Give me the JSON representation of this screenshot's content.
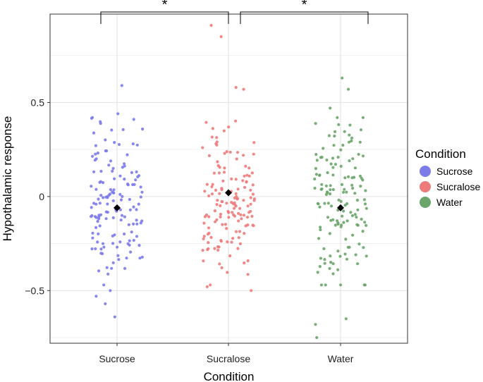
{
  "chart_data": {
    "type": "scatter",
    "subtype": "jittered-strip-with-mean",
    "title": "",
    "xlabel": "Condition",
    "ylabel": "Hypothalamic response",
    "ylim": [
      -0.78,
      0.97
    ],
    "yticks": [
      -0.5,
      0,
      0.5
    ],
    "ytick_labels": [
      "−0.5",
      "0",
      "0.5"
    ],
    "categories": [
      "Sucrose",
      "Sucralose",
      "Water"
    ],
    "grid": true,
    "legend": {
      "title": "Condition",
      "position": "right",
      "entries": [
        {
          "label": "Sucrose",
          "color": "#7b7bea"
        },
        {
          "label": "Sucralose",
          "color": "#ee7b7b"
        },
        {
          "label": "Water",
          "color": "#6aa56a"
        }
      ]
    },
    "series": [
      {
        "name": "Sucrose",
        "color": "#7b7bea",
        "mean": -0.06,
        "n": 150,
        "center": -0.05,
        "sd": 0.2,
        "extremes": [
          0.59,
          0.44,
          0.41,
          -0.5,
          -0.53,
          -0.57,
          -0.64
        ]
      },
      {
        "name": "Sucralose",
        "color": "#ee7b7b",
        "mean": 0.02,
        "n": 150,
        "center": 0.0,
        "sd": 0.2,
        "extremes": [
          0.91,
          0.85,
          0.58,
          0.57,
          -0.48,
          -0.5
        ]
      },
      {
        "name": "Water",
        "color": "#6aa56a",
        "mean": -0.06,
        "n": 150,
        "center": -0.05,
        "sd": 0.22,
        "extremes": [
          0.63,
          0.57,
          0.47,
          -0.65,
          -0.68,
          -0.75
        ]
      }
    ],
    "annotations": [
      {
        "from": "Sucrose",
        "to": "Sucralose",
        "label": "*"
      },
      {
        "from": "Sucralose",
        "to": "Water",
        "label": "*"
      }
    ],
    "mean_marker": {
      "shape": "diamond",
      "color": "#000000"
    }
  }
}
